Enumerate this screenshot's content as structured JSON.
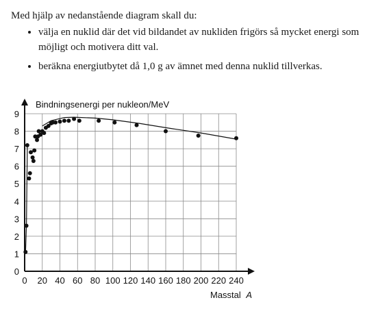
{
  "intro": {
    "lead": "Med hjälp av nedanstående diagram skall du:",
    "bullets": [
      "välja en nuklid där det vid bildandet av nukliden frigörs så mycket energi som möjligt och motivera ditt val.",
      "beräkna energiutbytet då 1,0 g av ämnet med denna nuklid tillverkas."
    ]
  },
  "chart_data": {
    "type": "scatter",
    "title": "",
    "ylabel": "Bindningsenergi per nukleon/MeV",
    "xlabel": "Masstal",
    "xlabel_var": "A",
    "xlim": [
      0,
      240
    ],
    "ylim": [
      0,
      9
    ],
    "xticks": [
      0,
      20,
      40,
      60,
      80,
      100,
      120,
      140,
      160,
      180,
      200,
      220,
      240
    ],
    "yticks": [
      0,
      1,
      2,
      3,
      4,
      5,
      6,
      7,
      8,
      9
    ],
    "grid": true,
    "points": [
      {
        "x": 1,
        "y": 1.1
      },
      {
        "x": 2,
        "y": 2.6
      },
      {
        "x": 3,
        "y": 7.2
      },
      {
        "x": 5,
        "y": 5.3
      },
      {
        "x": 6,
        "y": 5.6
      },
      {
        "x": 7,
        "y": 6.8
      },
      {
        "x": 9,
        "y": 6.5
      },
      {
        "x": 10,
        "y": 6.3
      },
      {
        "x": 11,
        "y": 6.9
      },
      {
        "x": 12,
        "y": 7.7
      },
      {
        "x": 14,
        "y": 7.5
      },
      {
        "x": 15,
        "y": 7.7
      },
      {
        "x": 16,
        "y": 8.0
      },
      {
        "x": 18,
        "y": 7.8
      },
      {
        "x": 20,
        "y": 8.0
      },
      {
        "x": 22,
        "y": 7.9
      },
      {
        "x": 24,
        "y": 8.2
      },
      {
        "x": 27,
        "y": 8.3
      },
      {
        "x": 30,
        "y": 8.45
      },
      {
        "x": 32,
        "y": 8.5
      },
      {
        "x": 35,
        "y": 8.5
      },
      {
        "x": 40,
        "y": 8.55
      },
      {
        "x": 45,
        "y": 8.6
      },
      {
        "x": 50,
        "y": 8.6
      },
      {
        "x": 56,
        "y": 8.7
      },
      {
        "x": 62,
        "y": 8.6
      },
      {
        "x": 84,
        "y": 8.6
      },
      {
        "x": 102,
        "y": 8.5
      },
      {
        "x": 127,
        "y": 8.35
      },
      {
        "x": 160,
        "y": 8.0
      },
      {
        "x": 197,
        "y": 7.75
      },
      {
        "x": 240,
        "y": 7.6
      }
    ],
    "curve": [
      {
        "x": 20,
        "y": 8.3
      },
      {
        "x": 30,
        "y": 8.6
      },
      {
        "x": 45,
        "y": 8.78
      },
      {
        "x": 56,
        "y": 8.8
      },
      {
        "x": 80,
        "y": 8.75
      },
      {
        "x": 100,
        "y": 8.65
      },
      {
        "x": 130,
        "y": 8.45
      },
      {
        "x": 160,
        "y": 8.2
      },
      {
        "x": 200,
        "y": 7.9
      },
      {
        "x": 240,
        "y": 7.55
      }
    ],
    "steep_curve": [
      {
        "x": 1,
        "y": 1.1
      },
      {
        "x": 2,
        "y": 2.6
      },
      {
        "x": 3,
        "y": 7.2
      }
    ]
  }
}
